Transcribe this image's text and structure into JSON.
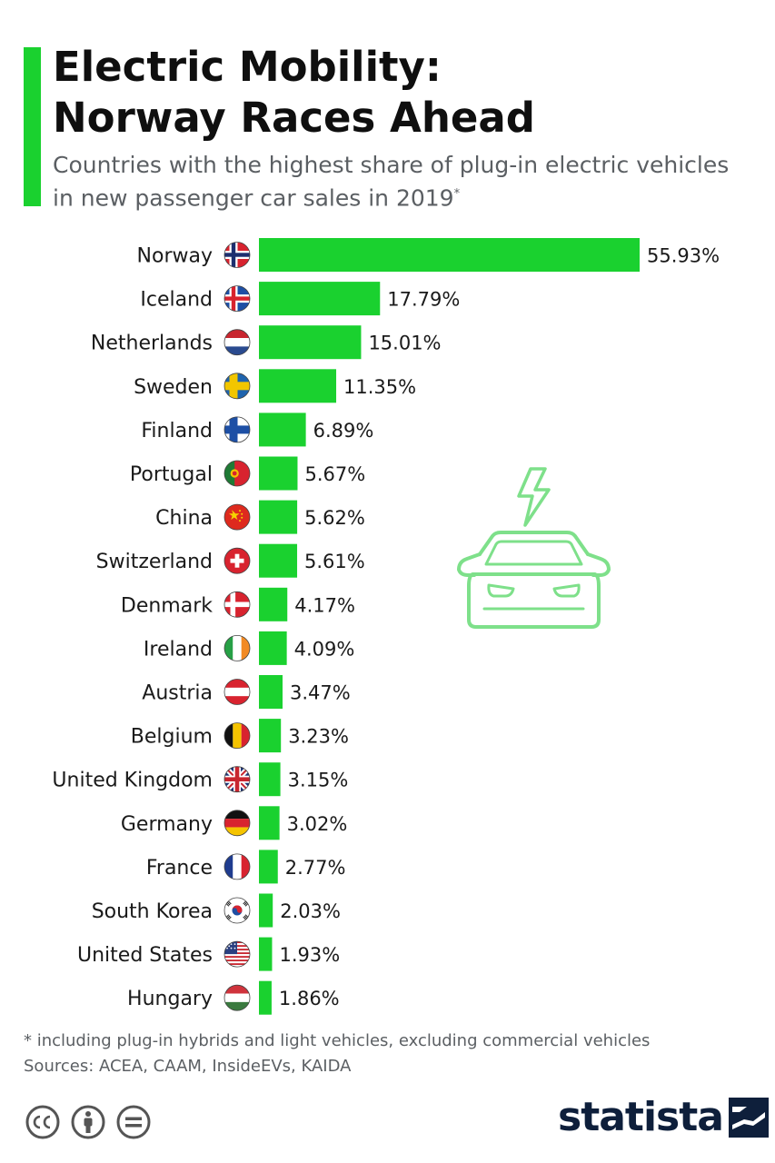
{
  "header": {
    "title_line1": "Electric Mobility:",
    "title_line2": "Norway Races Ahead",
    "subtitle_line1": "Countries with the highest share of plug-in electric vehicles",
    "subtitle_line2": "in new passenger car sales in 2019",
    "subtitle_mark": "*"
  },
  "chart_data": {
    "type": "bar",
    "orientation": "horizontal",
    "categories": [
      "Norway",
      "Iceland",
      "Netherlands",
      "Sweden",
      "Finland",
      "Portugal",
      "China",
      "Switzerland",
      "Denmark",
      "Ireland",
      "Austria",
      "Belgium",
      "United Kingdom",
      "Germany",
      "France",
      "South Korea",
      "United States",
      "Hungary"
    ],
    "values": [
      55.93,
      17.79,
      15.01,
      11.35,
      6.89,
      5.67,
      5.62,
      5.61,
      4.17,
      4.09,
      3.47,
      3.23,
      3.15,
      3.02,
      2.77,
      2.03,
      1.93,
      1.86
    ],
    "value_labels": [
      "55.93%",
      "17.79%",
      "15.01%",
      "11.35%",
      "6.89%",
      "5.67%",
      "5.62%",
      "5.61%",
      "4.17%",
      "4.09%",
      "3.47%",
      "3.23%",
      "3.15%",
      "3.02%",
      "2.77%",
      "2.03%",
      "1.93%",
      "1.86%"
    ],
    "bar_color": "#1ad12f",
    "xlim": [
      0,
      55.93
    ],
    "grid": false,
    "flag_icons": [
      "norway-flag-icon",
      "iceland-flag-icon",
      "netherlands-flag-icon",
      "sweden-flag-icon",
      "finland-flag-icon",
      "portugal-flag-icon",
      "china-flag-icon",
      "switzerland-flag-icon",
      "denmark-flag-icon",
      "ireland-flag-icon",
      "austria-flag-icon",
      "belgium-flag-icon",
      "united-kingdom-flag-icon",
      "germany-flag-icon",
      "france-flag-icon",
      "south-korea-flag-icon",
      "united-states-flag-icon",
      "hungary-flag-icon"
    ]
  },
  "illustration": {
    "icon": "electric-car-icon",
    "color": "#7ee08a"
  },
  "footer": {
    "footnote": "* including plug-in hybrids and light vehicles, excluding commercial vehicles",
    "sources": "Sources: ACEA, CAAM, InsideEVs, KAIDA",
    "license_icons": [
      "creative-commons-icon",
      "attribution-icon",
      "no-derivatives-icon"
    ],
    "brand": "statista"
  },
  "colors": {
    "accent": "#1ad12f",
    "brand_navy": "#0e1f3b",
    "muted_text": "#5b5f63"
  }
}
